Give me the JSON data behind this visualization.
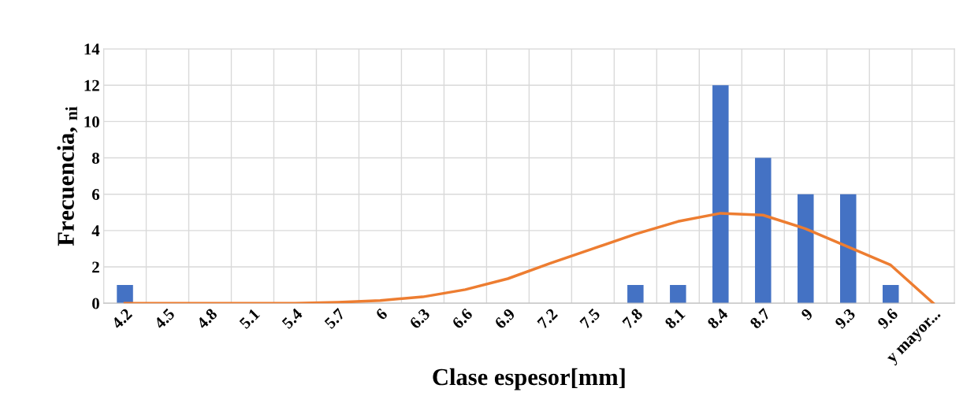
{
  "chart_data": {
    "type": "bar",
    "xlabel": "Clase espesor[mm]",
    "ylabel": "Frecuencia, $_{ni}$",
    "categories": [
      "4.2",
      "4.5",
      "4.8",
      "5.1",
      "5.4",
      "5.7",
      "6",
      "6.3",
      "6.6",
      "6.9",
      "7.2",
      "7.5",
      "7.8",
      "8.1",
      "8.4",
      "8.7",
      "9",
      "9.3",
      "9.6",
      "y mayor..."
    ],
    "series": [
      {
        "color": "#4472c4",
        "values": [
          1,
          0,
          0,
          0,
          0,
          0,
          0,
          0,
          0,
          0,
          0,
          0,
          1,
          1,
          12,
          8,
          6,
          6,
          1,
          0
        ]
      },
      {
        "type": "line",
        "color": "#ed7d31",
        "values": [
          0,
          0,
          0,
          0,
          0,
          0.05,
          0.15,
          0.35,
          0.75,
          1.35,
          2.2,
          3.0,
          3.8,
          4.5,
          4.95,
          4.85,
          4.1,
          3.1,
          2.1,
          0
        ]
      }
    ],
    "ylim": [
      0,
      14
    ],
    "yticks": [
      0,
      2,
      4,
      6,
      8,
      10,
      12,
      14
    ],
    "grid": true,
    "marker": "none",
    "line_style": "solid"
  }
}
